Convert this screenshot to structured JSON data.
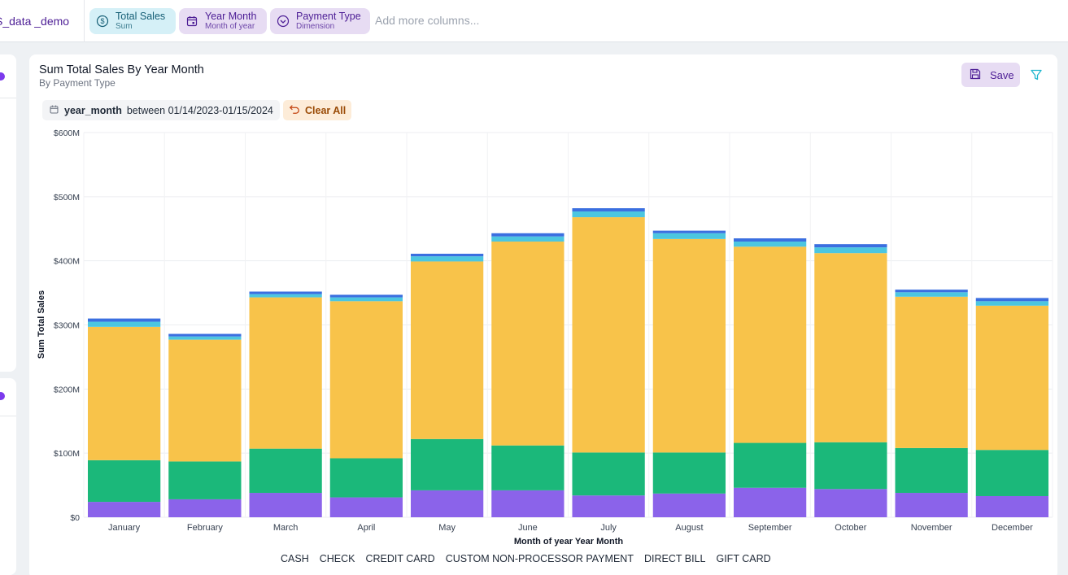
{
  "topbar": {
    "dataset_name": "S_data _demo",
    "pills": [
      {
        "label": "Total Sales",
        "sub": "Sum"
      },
      {
        "label": "Year Month",
        "sub": "Month of year"
      },
      {
        "label": "Payment Type",
        "sub": "Dimension"
      }
    ],
    "add_columns_placeholder": "Add more columns..."
  },
  "card": {
    "title": "Sum Total Sales By Year Month",
    "subtitle": "By Payment Type",
    "save_label": "Save",
    "filter": {
      "field": "year_month",
      "text": "between 01/14/2023-01/15/2024"
    },
    "clear_label": "Clear All"
  },
  "colors": {
    "CASH": "#3b6fe0",
    "CHECK": "#4cc6e0",
    "CREDIT CARD": "#f8c34a",
    "CUSTOM NON-PROCESSOR PAYMENT": "#1bb87a",
    "DIRECT BILL": "#8b63ea",
    "GIFT CARD": "#f5774d"
  },
  "chart_data": {
    "type": "bar",
    "stacked": true,
    "title": "Sum Total Sales By Year Month",
    "subtitle": "By Payment Type",
    "xlabel": "Month of year Year Month",
    "ylabel": "Sum Total Sales",
    "ylim": [
      0,
      600000000
    ],
    "yticks": [
      "$0",
      "$100M",
      "$200M",
      "$300M",
      "$400M",
      "$500M",
      "$600M"
    ],
    "categories": [
      "January",
      "February",
      "March",
      "April",
      "May",
      "June",
      "July",
      "August",
      "September",
      "October",
      "November",
      "December"
    ],
    "series": [
      {
        "name": "DIRECT BILL",
        "values": [
          24000000,
          28000000,
          38000000,
          31000000,
          42000000,
          42000000,
          34000000,
          37000000,
          46000000,
          44000000,
          38000000,
          33000000
        ]
      },
      {
        "name": "CUSTOM NON-PROCESSOR PAYMENT",
        "values": [
          65000000,
          59000000,
          69000000,
          61000000,
          80000000,
          70000000,
          67000000,
          64000000,
          70000000,
          73000000,
          70000000,
          72000000
        ]
      },
      {
        "name": "CREDIT CARD",
        "values": [
          208000000,
          190000000,
          236000000,
          245000000,
          277000000,
          318000000,
          367000000,
          333000000,
          306000000,
          295000000,
          236000000,
          225000000
        ]
      },
      {
        "name": "CHECK",
        "values": [
          8000000,
          5000000,
          5000000,
          6000000,
          8000000,
          8000000,
          9000000,
          9000000,
          8000000,
          9000000,
          7000000,
          7000000
        ]
      },
      {
        "name": "CASH",
        "values": [
          5000000,
          4000000,
          4000000,
          4000000,
          4000000,
          5000000,
          5000000,
          4000000,
          5000000,
          5000000,
          4000000,
          5000000
        ]
      },
      {
        "name": "GIFT CARD",
        "values": [
          0,
          0,
          0,
          0,
          0,
          0,
          0,
          0,
          0,
          0,
          0,
          0
        ]
      }
    ],
    "legend": [
      "CASH",
      "CHECK",
      "CREDIT CARD",
      "CUSTOM NON-PROCESSOR PAYMENT",
      "DIRECT BILL",
      "GIFT CARD"
    ],
    "legend_position": "bottom",
    "grid": true
  }
}
